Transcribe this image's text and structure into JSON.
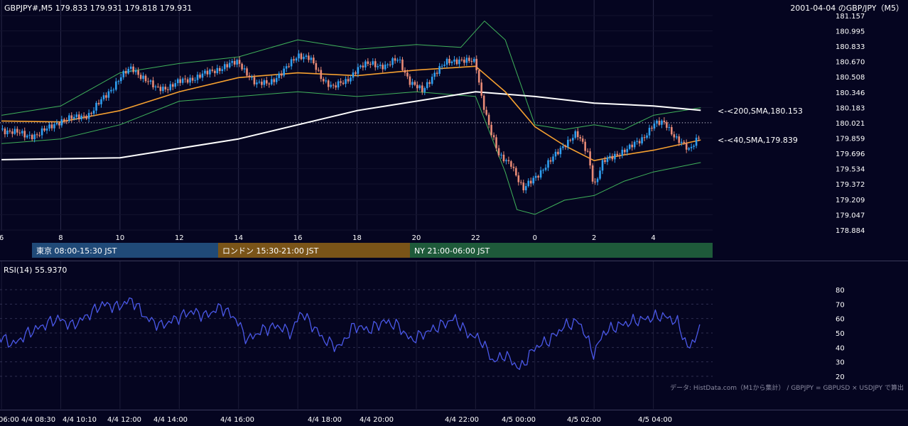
{
  "header": {
    "symbol_info": "GBPJPY#,M5 179.833 179.931 179.818 179.931",
    "title_right": "2001-04-04 のGBP/JPY（M5）"
  },
  "sessions": [
    {
      "label": "東京 08:00-15:30 JST",
      "color": "#204a78"
    },
    {
      "label": "ロンドン 15:30-21:00 JST",
      "color": "#7a5418"
    },
    {
      "label": "NY 21:00-06:00 JST",
      "color": "#1e5a3a"
    }
  ],
  "annotations": {
    "sma200": "<-<200,SMA,180.153",
    "sma40": "<-<40,SMA,179.839"
  },
  "rsi": {
    "label": "RSI(14) 55.9370",
    "ticks": [
      "80",
      "70",
      "60",
      "50",
      "40",
      "30",
      "20"
    ]
  },
  "footer": {
    "source": "データ: HistData.com（M1から集計） / GBPJPY = GBPUSD × USDJPY で算出"
  },
  "colors": {
    "background": "#050520",
    "up": "#2f9ff0",
    "down": "#e88a76",
    "bollinger": "#3fb15a",
    "sma40": "#f5a030",
    "sma200": "#ffffff",
    "rsi": "#4a58e8"
  },
  "chart_data": [
    {
      "type": "candlestick",
      "title": "GBPJPY#,M5",
      "y_ticks": [
        "181.157",
        "180.995",
        "180.833",
        "180.670",
        "180.508",
        "180.346",
        "180.183",
        "180.021",
        "179.859",
        "179.696",
        "179.534",
        "179.372",
        "179.209",
        "179.047",
        "178.884"
      ],
      "ylim": [
        178.884,
        181.157
      ],
      "x_ticks": [
        "6",
        "8",
        "10",
        "12",
        "14",
        "16",
        "18",
        "20",
        "22",
        "0",
        "2",
        "4"
      ],
      "x_ticks_hours": [
        6,
        8,
        10,
        12,
        14,
        16,
        18,
        20,
        22,
        24,
        26,
        28
      ],
      "ohlc_last": {
        "open": 179.833,
        "high": 179.931,
        "low": 179.818,
        "close": 179.931
      },
      "close_path": [
        {
          "t": 6.0,
          "v": 179.95
        },
        {
          "t": 6.4,
          "v": 179.93
        },
        {
          "t": 6.8,
          "v": 179.88
        },
        {
          "t": 7.2,
          "v": 179.9
        },
        {
          "t": 7.6,
          "v": 179.96
        },
        {
          "t": 8.0,
          "v": 180.05
        },
        {
          "t": 8.5,
          "v": 180.07
        },
        {
          "t": 9.0,
          "v": 180.12
        },
        {
          "t": 9.5,
          "v": 180.3
        },
        {
          "t": 10.0,
          "v": 180.5
        },
        {
          "t": 10.4,
          "v": 180.6
        },
        {
          "t": 10.8,
          "v": 180.5
        },
        {
          "t": 11.2,
          "v": 180.38
        },
        {
          "t": 11.6,
          "v": 180.4
        },
        {
          "t": 12.0,
          "v": 180.45
        },
        {
          "t": 12.5,
          "v": 180.5
        },
        {
          "t": 13.0,
          "v": 180.55
        },
        {
          "t": 13.5,
          "v": 180.62
        },
        {
          "t": 14.0,
          "v": 180.66
        },
        {
          "t": 14.3,
          "v": 180.55
        },
        {
          "t": 14.6,
          "v": 180.42
        },
        {
          "t": 15.0,
          "v": 180.45
        },
        {
          "t": 15.5,
          "v": 180.55
        },
        {
          "t": 16.0,
          "v": 180.75
        },
        {
          "t": 16.4,
          "v": 180.7
        },
        {
          "t": 16.8,
          "v": 180.5
        },
        {
          "t": 17.2,
          "v": 180.4
        },
        {
          "t": 17.6,
          "v": 180.45
        },
        {
          "t": 18.0,
          "v": 180.6
        },
        {
          "t": 18.5,
          "v": 180.65
        },
        {
          "t": 19.0,
          "v": 180.62
        },
        {
          "t": 19.4,
          "v": 180.7
        },
        {
          "t": 19.8,
          "v": 180.45
        },
        {
          "t": 20.2,
          "v": 180.35
        },
        {
          "t": 20.6,
          "v": 180.55
        },
        {
          "t": 21.0,
          "v": 180.65
        },
        {
          "t": 21.5,
          "v": 180.7
        },
        {
          "t": 22.0,
          "v": 180.65
        },
        {
          "t": 22.2,
          "v": 180.3
        },
        {
          "t": 22.5,
          "v": 179.95
        },
        {
          "t": 22.8,
          "v": 179.65
        },
        {
          "t": 23.2,
          "v": 179.6
        },
        {
          "t": 23.6,
          "v": 179.3
        },
        {
          "t": 24.0,
          "v": 179.45
        },
        {
          "t": 24.5,
          "v": 179.6
        },
        {
          "t": 25.0,
          "v": 179.8
        },
        {
          "t": 25.4,
          "v": 179.9
        },
        {
          "t": 25.8,
          "v": 179.7
        },
        {
          "t": 26.0,
          "v": 179.35
        },
        {
          "t": 26.3,
          "v": 179.6
        },
        {
          "t": 26.8,
          "v": 179.7
        },
        {
          "t": 27.2,
          "v": 179.75
        },
        {
          "t": 27.6,
          "v": 179.85
        },
        {
          "t": 28.0,
          "v": 180.0
        },
        {
          "t": 28.4,
          "v": 180.02
        },
        {
          "t": 28.8,
          "v": 179.85
        },
        {
          "t": 29.2,
          "v": 179.72
        },
        {
          "t": 29.6,
          "v": 179.93
        }
      ],
      "sma40": [
        {
          "t": 6.0,
          "v": 180.04
        },
        {
          "t": 8.0,
          "v": 180.03
        },
        {
          "t": 10.0,
          "v": 180.15
        },
        {
          "t": 12.0,
          "v": 180.35
        },
        {
          "t": 14.0,
          "v": 180.5
        },
        {
          "t": 16.0,
          "v": 180.55
        },
        {
          "t": 18.0,
          "v": 180.52
        },
        {
          "t": 20.0,
          "v": 180.58
        },
        {
          "t": 22.0,
          "v": 180.62
        },
        {
          "t": 23.0,
          "v": 180.35
        },
        {
          "t": 24.0,
          "v": 179.98
        },
        {
          "t": 25.0,
          "v": 179.78
        },
        {
          "t": 26.0,
          "v": 179.62
        },
        {
          "t": 27.0,
          "v": 179.68
        },
        {
          "t": 28.0,
          "v": 179.73
        },
        {
          "t": 29.6,
          "v": 179.839
        }
      ],
      "sma200": [
        {
          "t": 6.0,
          "v": 179.63
        },
        {
          "t": 10.0,
          "v": 179.65
        },
        {
          "t": 14.0,
          "v": 179.85
        },
        {
          "t": 18.0,
          "v": 180.15
        },
        {
          "t": 20.0,
          "v": 180.25
        },
        {
          "t": 22.0,
          "v": 180.35
        },
        {
          "t": 24.0,
          "v": 180.3
        },
        {
          "t": 26.0,
          "v": 180.23
        },
        {
          "t": 28.0,
          "v": 180.2
        },
        {
          "t": 29.6,
          "v": 180.153
        }
      ],
      "bollinger_upper": [
        {
          "t": 6.0,
          "v": 180.1
        },
        {
          "t": 8.0,
          "v": 180.2
        },
        {
          "t": 10.0,
          "v": 180.55
        },
        {
          "t": 12.0,
          "v": 180.65
        },
        {
          "t": 14.0,
          "v": 180.72
        },
        {
          "t": 16.0,
          "v": 180.9
        },
        {
          "t": 18.0,
          "v": 180.8
        },
        {
          "t": 20.0,
          "v": 180.85
        },
        {
          "t": 21.5,
          "v": 180.82
        },
        {
          "t": 22.3,
          "v": 181.1
        },
        {
          "t": 23.0,
          "v": 180.9
        },
        {
          "t": 24.0,
          "v": 180.0
        },
        {
          "t": 25.0,
          "v": 179.95
        },
        {
          "t": 26.0,
          "v": 180.0
        },
        {
          "t": 27.0,
          "v": 179.95
        },
        {
          "t": 28.0,
          "v": 180.1
        },
        {
          "t": 29.6,
          "v": 180.18
        }
      ],
      "bollinger_lower": [
        {
          "t": 6.0,
          "v": 179.8
        },
        {
          "t": 8.0,
          "v": 179.85
        },
        {
          "t": 10.0,
          "v": 180.0
        },
        {
          "t": 12.0,
          "v": 180.25
        },
        {
          "t": 14.0,
          "v": 180.3
        },
        {
          "t": 16.0,
          "v": 180.35
        },
        {
          "t": 18.0,
          "v": 180.3
        },
        {
          "t": 20.0,
          "v": 180.35
        },
        {
          "t": 22.0,
          "v": 180.3
        },
        {
          "t": 23.0,
          "v": 179.5
        },
        {
          "t": 23.4,
          "v": 179.1
        },
        {
          "t": 24.0,
          "v": 179.05
        },
        {
          "t": 25.0,
          "v": 179.2
        },
        {
          "t": 26.0,
          "v": 179.25
        },
        {
          "t": 27.0,
          "v": 179.4
        },
        {
          "t": 28.0,
          "v": 179.5
        },
        {
          "t": 29.6,
          "v": 179.6
        }
      ],
      "dotted_level": 180.021
    },
    {
      "type": "line",
      "title": "RSI(14)",
      "ylim": [
        20,
        80
      ],
      "rsi_path": [
        {
          "t": 5.9,
          "v": 48
        },
        {
          "t": 6.4,
          "v": 42
        },
        {
          "t": 6.9,
          "v": 50
        },
        {
          "t": 7.4,
          "v": 55
        },
        {
          "t": 7.9,
          "v": 60
        },
        {
          "t": 8.4,
          "v": 55
        },
        {
          "t": 8.9,
          "v": 62
        },
        {
          "t": 9.4,
          "v": 70
        },
        {
          "t": 9.9,
          "v": 68
        },
        {
          "t": 10.4,
          "v": 73
        },
        {
          "t": 10.9,
          "v": 60
        },
        {
          "t": 11.4,
          "v": 55
        },
        {
          "t": 11.9,
          "v": 60
        },
        {
          "t": 12.4,
          "v": 65
        },
        {
          "t": 12.9,
          "v": 62
        },
        {
          "t": 13.4,
          "v": 68
        },
        {
          "t": 13.9,
          "v": 60
        },
        {
          "t": 14.3,
          "v": 45
        },
        {
          "t": 14.8,
          "v": 52
        },
        {
          "t": 15.3,
          "v": 55
        },
        {
          "t": 15.8,
          "v": 50
        },
        {
          "t": 16.1,
          "v": 65
        },
        {
          "t": 16.5,
          "v": 55
        },
        {
          "t": 16.9,
          "v": 45
        },
        {
          "t": 17.4,
          "v": 40
        },
        {
          "t": 17.9,
          "v": 55
        },
        {
          "t": 18.4,
          "v": 52
        },
        {
          "t": 18.9,
          "v": 58
        },
        {
          "t": 19.4,
          "v": 55
        },
        {
          "t": 19.8,
          "v": 45
        },
        {
          "t": 20.3,
          "v": 50
        },
        {
          "t": 20.8,
          "v": 55
        },
        {
          "t": 21.3,
          "v": 60
        },
        {
          "t": 21.7,
          "v": 50
        },
        {
          "t": 22.2,
          "v": 45
        },
        {
          "t": 22.6,
          "v": 30
        },
        {
          "t": 23.0,
          "v": 35
        },
        {
          "t": 23.5,
          "v": 25
        },
        {
          "t": 24.0,
          "v": 40
        },
        {
          "t": 24.5,
          "v": 45
        },
        {
          "t": 25.0,
          "v": 55
        },
        {
          "t": 25.5,
          "v": 58
        },
        {
          "t": 26.0,
          "v": 35
        },
        {
          "t": 26.3,
          "v": 50
        },
        {
          "t": 26.8,
          "v": 55
        },
        {
          "t": 27.3,
          "v": 58
        },
        {
          "t": 27.8,
          "v": 60
        },
        {
          "t": 28.3,
          "v": 62
        },
        {
          "t": 28.8,
          "v": 58
        },
        {
          "t": 29.2,
          "v": 38
        },
        {
          "t": 29.6,
          "v": 55.937
        }
      ]
    }
  ],
  "x_axis_bottom": [
    "06:00 4/4 08:30",
    "4/4 10:10",
    "4/4 12:00",
    "4/4 14:00",
    "4/4 16:00",
    "4/4 18:00",
    "4/4 20:00",
    "4/4 22:00",
    "4/5 00:00",
    "4/5 02:00",
    "4/5 04:00"
  ]
}
